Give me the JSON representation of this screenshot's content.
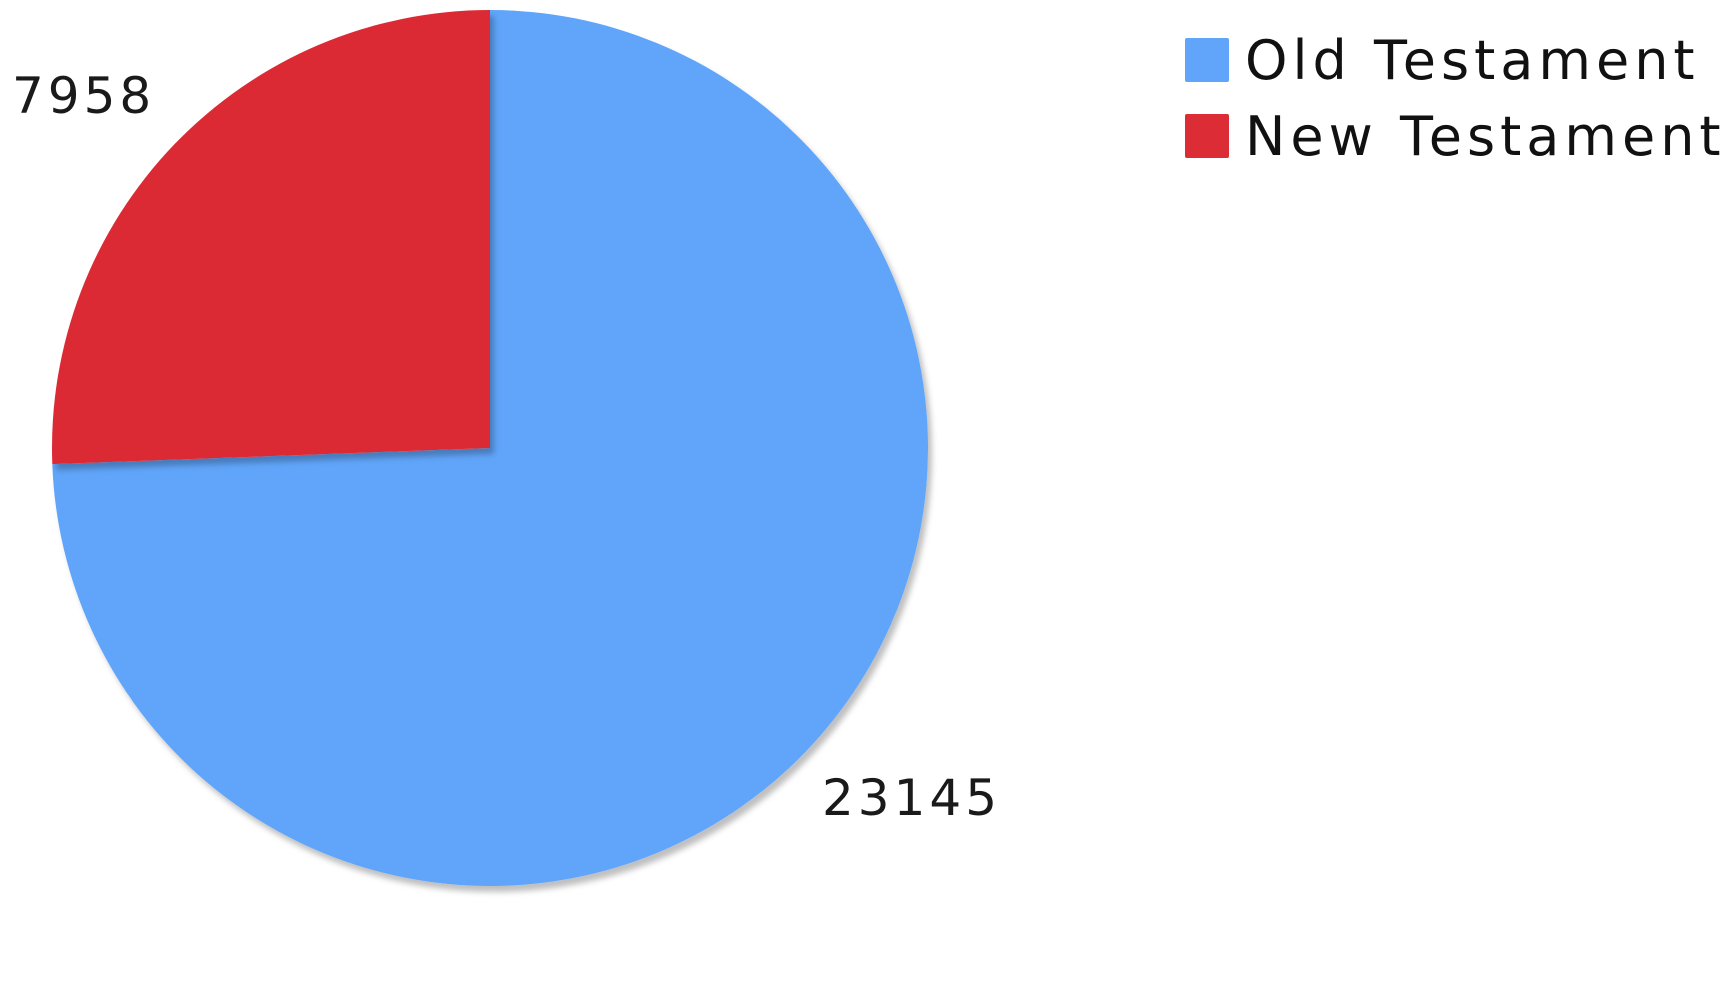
{
  "chart_data": {
    "type": "pie",
    "title": "",
    "slices": [
      {
        "label": "Old Testament",
        "value": 23145,
        "color": "#60a5fa"
      },
      {
        "label": "New Testament",
        "value": 7958,
        "color": "#dc2c36"
      }
    ],
    "legend_position": "top-right",
    "data_labels": [
      "23145",
      "7958"
    ]
  }
}
